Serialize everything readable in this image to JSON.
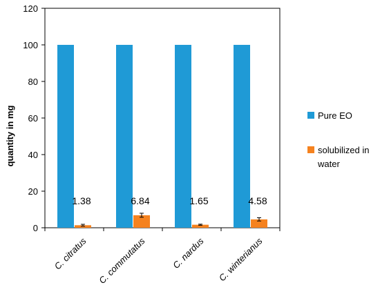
{
  "chart_data": {
    "type": "bar",
    "title": "",
    "xlabel": "",
    "ylabel": "quantity in mg",
    "ylim": [
      0,
      120
    ],
    "yticks": [
      0,
      20,
      40,
      60,
      80,
      100,
      120
    ],
    "grid": false,
    "legend_position": "right",
    "categories": [
      "C. citratus",
      "C. commutatus",
      "C. nardus",
      "C. winterianus"
    ],
    "series": [
      {
        "name": "Pure EO",
        "color": "#1f9ad6",
        "values": [
          100,
          100,
          100,
          100
        ]
      },
      {
        "name": "solubilized in water",
        "color": "#f5821f",
        "values": [
          1.38,
          6.84,
          1.65,
          4.58
        ],
        "errors": [
          0.5,
          1.1,
          0.3,
          0.9
        ]
      }
    ],
    "data_labels": [
      "1.38",
      "6.84",
      "1.65",
      "4.58"
    ]
  }
}
